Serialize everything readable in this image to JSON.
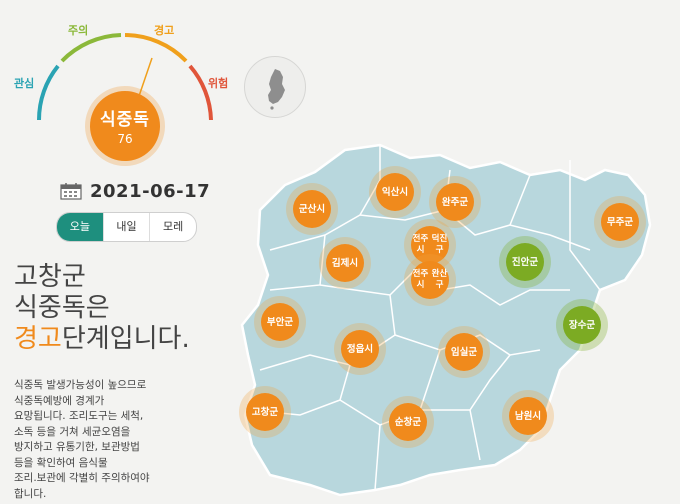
{
  "gauge": {
    "labels": {
      "interest": "관심",
      "caution": "주의",
      "warning": "경고",
      "danger": "위험"
    },
    "colors": {
      "interest": "#2aa3b3",
      "caution": "#8bb83a",
      "warning": "#f0a01c",
      "danger": "#e0553a"
    },
    "current_level": "식중독",
    "index": "76"
  },
  "date": {
    "value": "2021-06-17"
  },
  "day_tabs": {
    "today": "오늘",
    "tomorrow": "내일",
    "day_after": "모레"
  },
  "headline": {
    "region": "고창군",
    "subject": "식중독은",
    "level": "경고",
    "suffix": "단계입니다."
  },
  "description": {
    "lines": [
      "식중독 발생가능성이 높으므로",
      "식중독예방에 경계가",
      "요망됩니다. 조리도구는 세척,",
      "소독 등을 거쳐 세균오염을",
      "방지하고 유통기한, 보관방법",
      "등을 확인하여 음식물",
      "조리.보관에 각별히 주의하여야",
      "합니다."
    ]
  },
  "map": {
    "markers": [
      {
        "name": "군산시",
        "status": "warning"
      },
      {
        "name": "익산시",
        "status": "warning"
      },
      {
        "name": "완주군",
        "status": "warning"
      },
      {
        "name": "무주군",
        "status": "warning"
      },
      {
        "name": "전주시 덕진구",
        "status": "warning"
      },
      {
        "name": "김제시",
        "status": "warning"
      },
      {
        "name": "진안군",
        "status": "caution"
      },
      {
        "name": "전주시 완산구",
        "status": "warning"
      },
      {
        "name": "부안군",
        "status": "warning"
      },
      {
        "name": "장수군",
        "status": "caution"
      },
      {
        "name": "정읍시",
        "status": "warning"
      },
      {
        "name": "임실군",
        "status": "warning"
      },
      {
        "name": "고창군",
        "status": "warning"
      },
      {
        "name": "순창군",
        "status": "warning"
      },
      {
        "name": "남원시",
        "status": "warning"
      }
    ]
  }
}
